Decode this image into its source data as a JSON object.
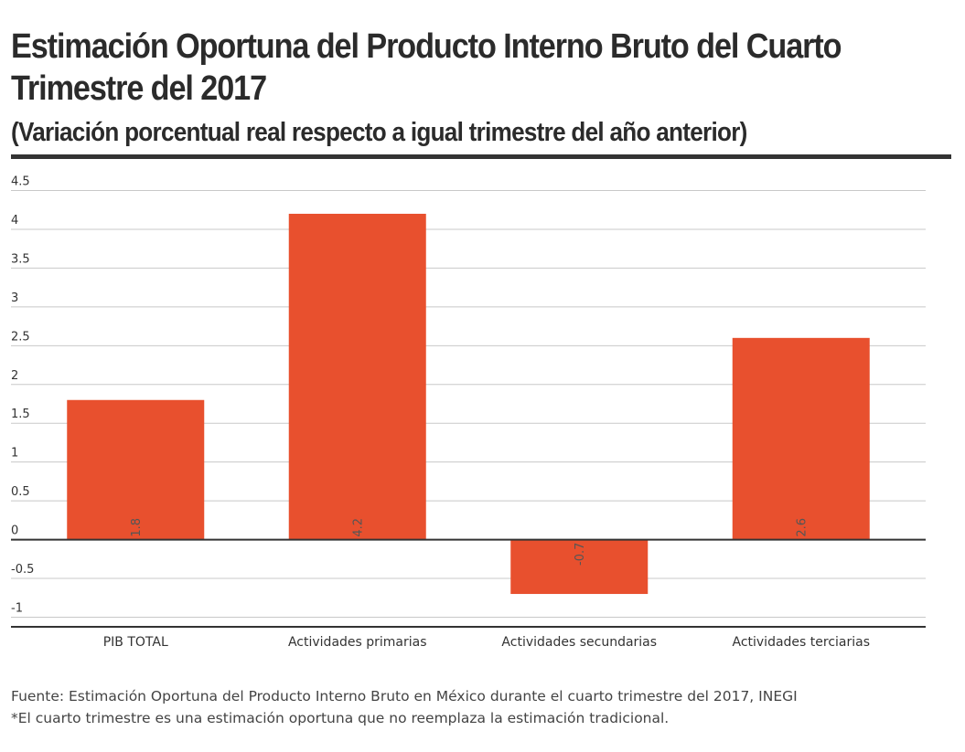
{
  "title": "Estimación Oportuna del Producto Interno Bruto del Cuarto Trimestre del 2017",
  "subtitle": "(Variación porcentual real respecto a igual trimestre del año anterior)",
  "chart_data": {
    "type": "bar",
    "categories": [
      "PIB TOTAL",
      "Actividades primarias",
      "Actividades secundarias",
      "Actividades terciarias"
    ],
    "values": [
      1.8,
      4.2,
      -0.7,
      2.6
    ],
    "value_labels": [
      "1.8",
      "4.2",
      "-0.7",
      "2.6"
    ],
    "yticks": [
      -1,
      -0.5,
      0,
      0.5,
      1,
      1.5,
      2,
      2.5,
      3,
      3.5,
      4,
      4.5
    ],
    "ytick_labels": [
      "-1",
      "-0.5",
      "0",
      "0.5",
      "1",
      "1.5",
      "2",
      "2.5",
      "3",
      "3.5",
      "4",
      "4.5"
    ],
    "ylim": [
      -1.1,
      4.6
    ],
    "xlabel": "",
    "ylabel": "",
    "grid": true,
    "bar_color": "#e8502e"
  },
  "footer": {
    "source": "Fuente: Estimación Oportuna del Producto Interno Bruto en México durante el cuarto trimestre del 2017, INEGI",
    "note": "*El cuarto trimestre es una estimación oportuna que no reemplaza la estimación tradicional."
  }
}
